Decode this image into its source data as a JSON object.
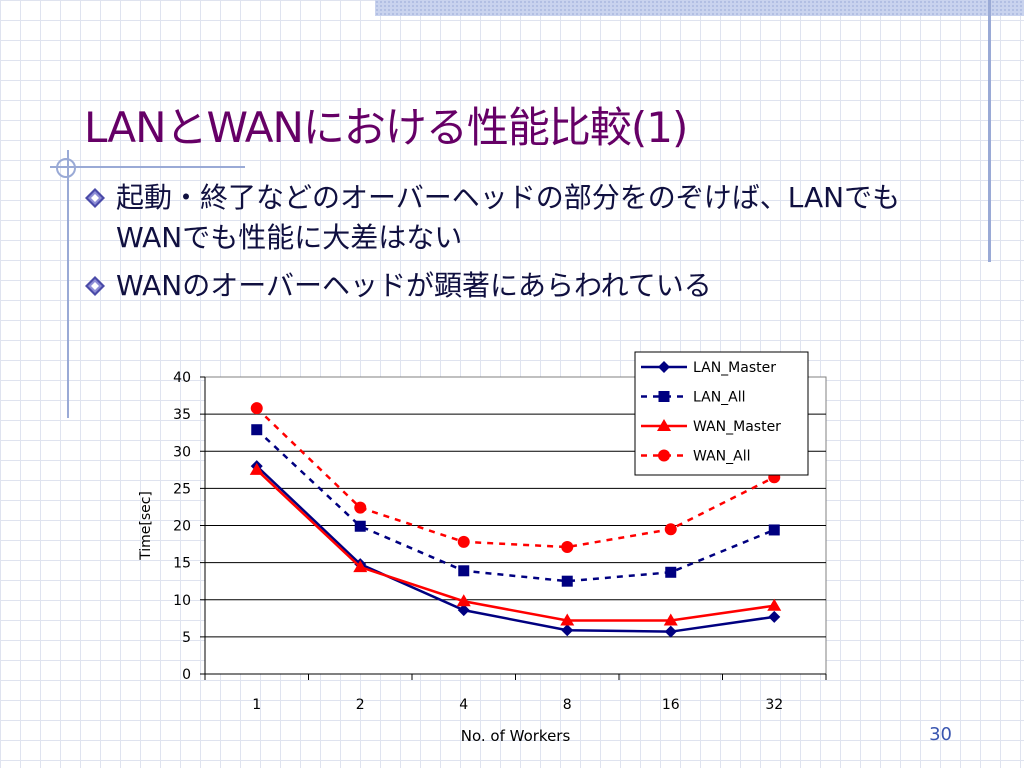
{
  "slide": {
    "title": "LANとWANにおける性能比較(1)",
    "bullets": [
      "起動・終了などのオーバーヘッドの部分をのぞけば、LANでもWANでも性能に大差はない",
      "WANのオーバーヘッドが顕著にあらわれている"
    ],
    "page_number": "30"
  },
  "colors": {
    "title": "#660066",
    "bullet_text": "#101040",
    "bullet_icon": "#4a4aa8",
    "lan": "#000080",
    "wan": "#ff0000"
  },
  "chart_data": {
    "type": "line",
    "categories": [
      "1",
      "2",
      "4",
      "8",
      "16",
      "32"
    ],
    "xlabel": "No. of Workers",
    "ylabel": "Time[sec]",
    "ylim": [
      0,
      40
    ],
    "yticks": [
      "0",
      "5",
      "10",
      "15",
      "20",
      "25",
      "30",
      "35",
      "40"
    ],
    "grid": true,
    "legend_position": "top-right",
    "series": [
      {
        "name": "LAN_Master",
        "values": [
          28.0,
          14.8,
          8.6,
          5.9,
          5.7,
          7.7
        ],
        "color": "#000080",
        "dash": "solid",
        "marker": "diamond"
      },
      {
        "name": "LAN_All",
        "values": [
          32.9,
          19.9,
          13.9,
          12.5,
          13.7,
          19.4
        ],
        "color": "#000080",
        "dash": "dashed",
        "marker": "square"
      },
      {
        "name": "WAN_Master",
        "values": [
          27.5,
          14.4,
          9.8,
          7.2,
          7.2,
          9.2
        ],
        "color": "#ff0000",
        "dash": "solid",
        "marker": "triangle"
      },
      {
        "name": "WAN_All",
        "values": [
          35.8,
          22.4,
          17.8,
          17.1,
          19.5,
          26.5
        ],
        "color": "#ff0000",
        "dash": "dashed",
        "marker": "circle"
      }
    ]
  }
}
